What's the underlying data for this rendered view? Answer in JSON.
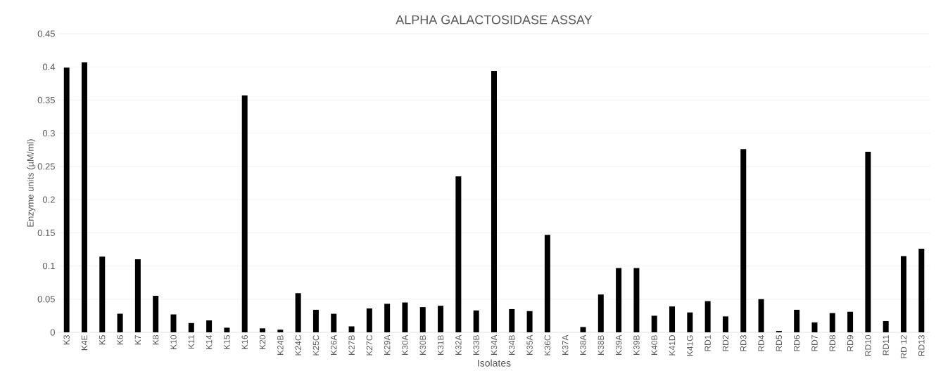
{
  "chart_data": {
    "type": "bar",
    "title": "ALPHA GALACTOSIDASE ASSAY",
    "xlabel": "Isolates",
    "ylabel": "Enzyme units (µM/ml)",
    "categories": [
      "K3",
      "K4E",
      "K5",
      "K6",
      "K7",
      "K8",
      "K10",
      "K11",
      "K14",
      "K15",
      "K16",
      "K20",
      "K24B",
      "K24C",
      "K25C",
      "K26A",
      "K27B",
      "K27C",
      "K29A",
      "K30A",
      "K30B",
      "K31B",
      "K32A",
      "K33B",
      "K34A",
      "K34B",
      "K35A",
      "K36C",
      "K37A",
      "K38A",
      "K38B",
      "K39A",
      "K39B",
      "K40B",
      "K41D",
      "K41G",
      "RD1",
      "RD2",
      "RD3",
      "RD4",
      "RD5",
      "RD6",
      "RD7",
      "RD8",
      "RD9",
      "RD10",
      "RD11",
      "RD 12",
      "RD13"
    ],
    "values": [
      0.399,
      0.407,
      0.114,
      0.028,
      0.11,
      0.055,
      0.027,
      0.014,
      0.018,
      0.007,
      0.357,
      0.006,
      0.004,
      0.059,
      0.034,
      0.028,
      0.009,
      0.036,
      0.043,
      0.045,
      0.038,
      0.04,
      0.235,
      0.033,
      0.394,
      0.035,
      0.032,
      0.147,
      0,
      0.008,
      0.057,
      0.097,
      0.097,
      0.025,
      0.039,
      0.03,
      0.047,
      0.024,
      0.276,
      0.05,
      0.002,
      0.034,
      0.015,
      0.029,
      0.031,
      0.272,
      0.017,
      0.115,
      0.126
    ],
    "color": "#000000",
    "ylim": [
      0,
      0.45
    ],
    "yticks": [
      0,
      0.05,
      0.1,
      0.15,
      0.2,
      0.25,
      0.3,
      0.35,
      0.4,
      0.45
    ],
    "grid": "y"
  }
}
